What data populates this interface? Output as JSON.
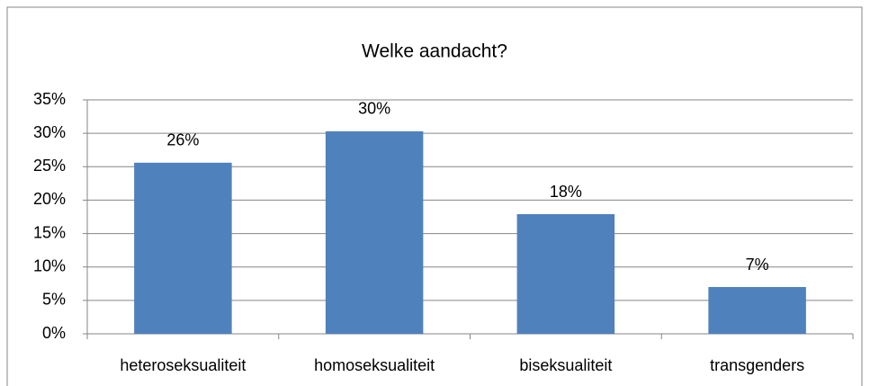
{
  "chart_data": {
    "type": "bar",
    "title": "Welke aandacht?",
    "categories": [
      "heteroseksualiteit",
      "homoseksualiteit",
      "biseksualiteit",
      "transgenders"
    ],
    "values": [
      25.6,
      30.3,
      17.9,
      7.0
    ],
    "value_labels": [
      "26%",
      "30%",
      "18%",
      "7%"
    ],
    "color": "#4f81bd",
    "ylim": [
      0,
      35
    ],
    "yticks": [
      {
        "value": 0,
        "label": "0%"
      },
      {
        "value": 5,
        "label": "5%"
      },
      {
        "value": 10,
        "label": "10%"
      },
      {
        "value": 15,
        "label": "15%"
      },
      {
        "value": 20,
        "label": "20%"
      },
      {
        "value": 25,
        "label": "25%"
      },
      {
        "value": 30,
        "label": "30%"
      },
      {
        "value": 35,
        "label": "35%"
      }
    ],
    "grid": true
  }
}
